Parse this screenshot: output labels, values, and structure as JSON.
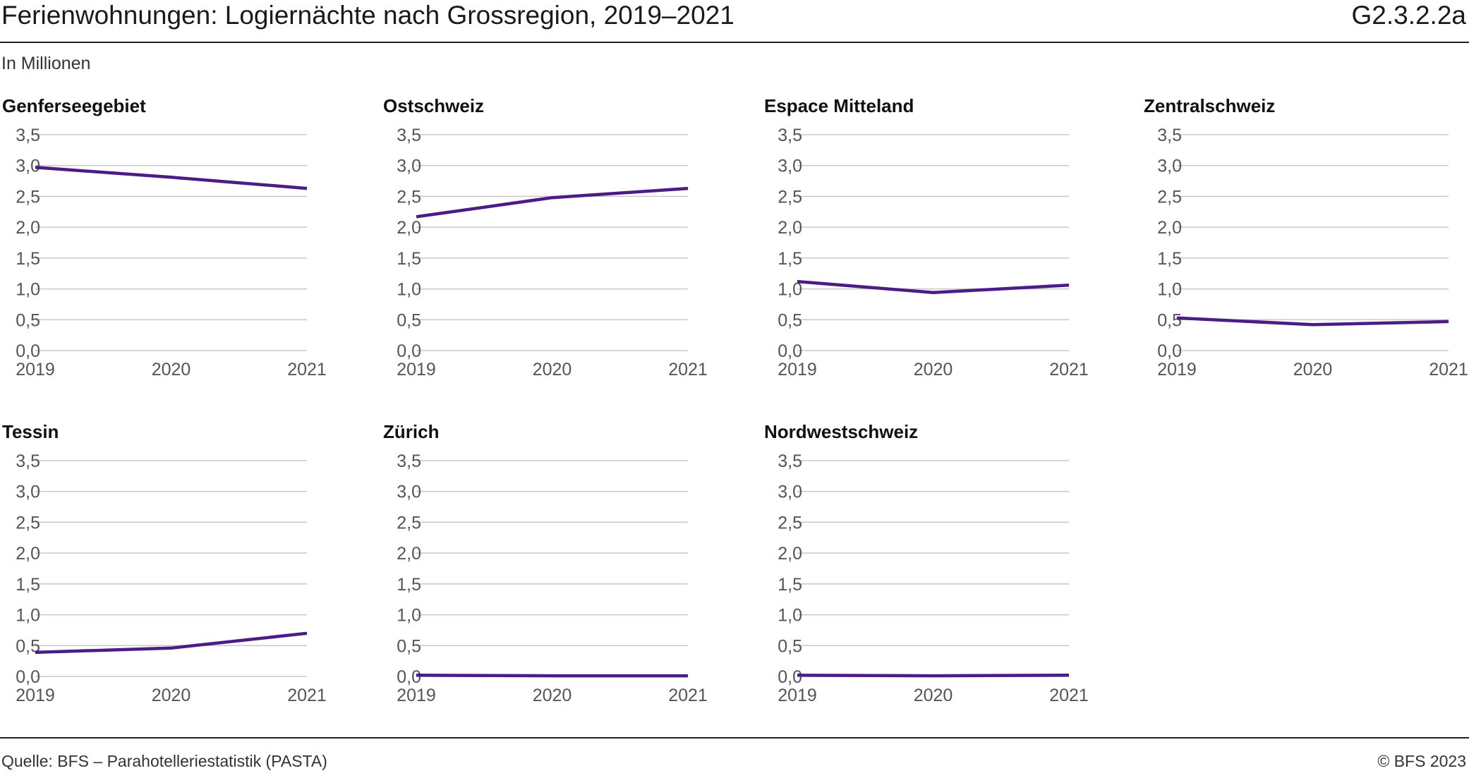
{
  "header": {
    "title": "Ferienwohnungen: Logiernächte nach Grossregion, 2019–2021",
    "code": "G2.3.2.2a",
    "unit": "In Millionen"
  },
  "footer": {
    "source": "Quelle: BFS – Parahotelleriestatistik (PASTA)",
    "copyright": "© BFS 2023"
  },
  "colors": {
    "line": "#4b1b86",
    "grid": "#c8c8c8"
  },
  "chart_data": [
    {
      "type": "line",
      "title": "Genferseegebiet",
      "categories": [
        "2019",
        "2020",
        "2021"
      ],
      "values": [
        2.97,
        2.81,
        2.63
      ],
      "ylim": [
        0,
        3.5
      ],
      "yticks": [
        "0,0",
        "0,5",
        "1,0",
        "1,5",
        "2,0",
        "2,5",
        "3,0",
        "3,5"
      ],
      "grid": true
    },
    {
      "type": "line",
      "title": "Ostschweiz",
      "categories": [
        "2019",
        "2020",
        "2021"
      ],
      "values": [
        2.17,
        2.48,
        2.63
      ],
      "ylim": [
        0,
        3.5
      ],
      "yticks": [
        "0,0",
        "0,5",
        "1,0",
        "1,5",
        "2,0",
        "2,5",
        "3,0",
        "3,5"
      ],
      "grid": true
    },
    {
      "type": "line",
      "title": "Espace Mitteland",
      "categories": [
        "2019",
        "2020",
        "2021"
      ],
      "values": [
        1.12,
        0.94,
        1.06
      ],
      "ylim": [
        0,
        3.5
      ],
      "yticks": [
        "0,0",
        "0,5",
        "1,0",
        "1,5",
        "2,0",
        "2,5",
        "3,0",
        "3,5"
      ],
      "grid": true
    },
    {
      "type": "line",
      "title": "Zentralschweiz",
      "categories": [
        "2019",
        "2020",
        "2021"
      ],
      "values": [
        0.53,
        0.42,
        0.47
      ],
      "ylim": [
        0,
        3.5
      ],
      "yticks": [
        "0,0",
        "0,5",
        "1,0",
        "1,5",
        "2,0",
        "2,5",
        "3,0",
        "3,5"
      ],
      "grid": true
    },
    {
      "type": "line",
      "title": "Tessin",
      "categories": [
        "2019",
        "2020",
        "2021"
      ],
      "values": [
        0.39,
        0.46,
        0.7
      ],
      "ylim": [
        0,
        3.5
      ],
      "yticks": [
        "0,0",
        "0,5",
        "1,0",
        "1,5",
        "2,0",
        "2,5",
        "3,0",
        "3,5"
      ],
      "grid": true
    },
    {
      "type": "line",
      "title": "Zürich",
      "categories": [
        "2019",
        "2020",
        "2021"
      ],
      "values": [
        0.02,
        0.01,
        0.01
      ],
      "ylim": [
        0,
        3.5
      ],
      "yticks": [
        "0,0",
        "0,5",
        "1,0",
        "1,5",
        "2,0",
        "2,5",
        "3,0",
        "3,5"
      ],
      "grid": true
    },
    {
      "type": "line",
      "title": "Nordwestschweiz",
      "categories": [
        "2019",
        "2020",
        "2021"
      ],
      "values": [
        0.02,
        0.01,
        0.02
      ],
      "ylim": [
        0,
        3.5
      ],
      "yticks": [
        "0,0",
        "0,5",
        "1,0",
        "1,5",
        "2,0",
        "2,5",
        "3,0",
        "3,5"
      ],
      "grid": true
    }
  ]
}
